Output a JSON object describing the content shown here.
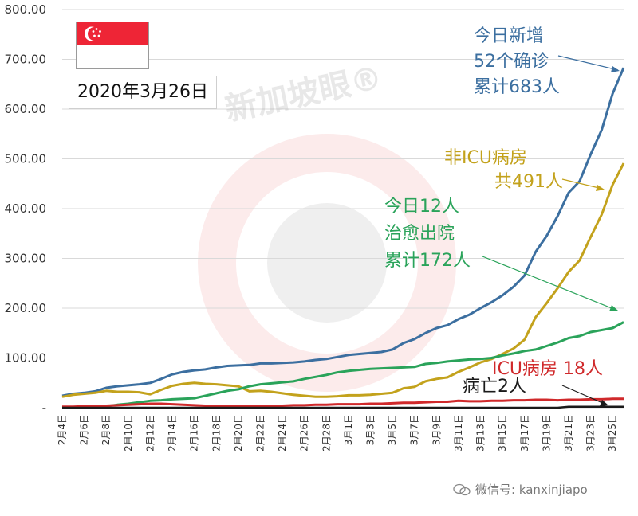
{
  "header": {
    "date": "2020年3月26日",
    "watermark": "新加坡眼®"
  },
  "annotations": {
    "confirmed": [
      "今日新增",
      "52个确诊",
      "累计683人"
    ],
    "non_icu": [
      "非ICU病房",
      "共491人"
    ],
    "discharged": [
      "今日12人",
      "治愈出院",
      "累计172人"
    ],
    "icu": "ICU病房 18人",
    "deaths": "病亡2人"
  },
  "footer": {
    "label": "微信号: kanxinjiapo"
  },
  "colors": {
    "confirmed": "#3c6fa0",
    "non_icu": "#c3a21c",
    "discharged": "#2aa35a",
    "icu": "#d0292b",
    "deaths": "#1a1a1a",
    "flag_red": "#ee2536"
  },
  "chart_data": {
    "type": "line",
    "title": "",
    "xlabel": "",
    "ylabel": "",
    "ylim": [
      0,
      800
    ],
    "yticks": [
      "-",
      "100.00",
      "200.00",
      "300.00",
      "400.00",
      "500.00",
      "600.00",
      "700.00",
      "800.00"
    ],
    "grid": true,
    "xtick_labels": [
      "2月4日",
      "2月6日",
      "2月8日",
      "2月10日",
      "2月12日",
      "2月14日",
      "2月16日",
      "2月18日",
      "2月20日",
      "2月22日",
      "2月24日",
      "2月26日",
      "2月28日",
      "3月1日",
      "3月3日",
      "3月5日",
      "3月7日",
      "3月9日",
      "3月11日",
      "3月13日",
      "3月15日",
      "3月17日",
      "3月19日",
      "3月21日",
      "3月23日",
      "3月25日"
    ],
    "x": [
      "2月4日",
      "2月5日",
      "2月6日",
      "2月7日",
      "2月8日",
      "2月9日",
      "2月10日",
      "2月11日",
      "2月12日",
      "2月13日",
      "2月14日",
      "2月15日",
      "2月16日",
      "2月17日",
      "2月18日",
      "2月19日",
      "2月20日",
      "2月21日",
      "2月22日",
      "2月23日",
      "2月24日",
      "2月25日",
      "2月26日",
      "2月27日",
      "2月28日",
      "2月29日",
      "3月1日",
      "3月2日",
      "3月3日",
      "3月4日",
      "3月5日",
      "3月6日",
      "3月7日",
      "3月8日",
      "3月9日",
      "3月10日",
      "3月11日",
      "3月12日",
      "3月13日",
      "3月14日",
      "3月15日",
      "3月16日",
      "3月17日",
      "3月18日",
      "3月19日",
      "3月20日",
      "3月21日",
      "3月22日",
      "3月23日",
      "3月24日",
      "3月25日",
      "3月26日"
    ],
    "series": [
      {
        "key": "confirmed",
        "values": [
          24,
          28,
          30,
          33,
          40,
          43,
          45,
          47,
          50,
          58,
          67,
          72,
          75,
          77,
          81,
          84,
          85,
          86,
          89,
          89,
          90,
          91,
          93,
          96,
          98,
          102,
          106,
          108,
          110,
          112,
          117,
          130,
          138,
          150,
          160,
          166,
          178,
          187,
          200,
          212,
          226,
          243,
          266,
          313,
          345,
          385,
          432,
          455,
          509,
          558,
          631,
          683
        ]
      },
      {
        "key": "non_icu",
        "values": [
          22,
          26,
          28,
          30,
          34,
          32,
          32,
          31,
          27,
          36,
          44,
          48,
          50,
          48,
          47,
          45,
          43,
          33,
          34,
          32,
          29,
          26,
          24,
          22,
          22,
          23,
          25,
          25,
          26,
          28,
          30,
          39,
          42,
          53,
          58,
          61,
          72,
          81,
          91,
          98,
          108,
          119,
          137,
          182,
          210,
          240,
          273,
          296,
          343,
          388,
          448,
          491
        ]
      },
      {
        "key": "discharged",
        "values": [
          0,
          1,
          1,
          2,
          3,
          6,
          8,
          11,
          14,
          15,
          17,
          18,
          19,
          24,
          29,
          34,
          37,
          43,
          47,
          49,
          51,
          53,
          58,
          62,
          66,
          71,
          74,
          76,
          78,
          79,
          80,
          81,
          82,
          88,
          90,
          93,
          95,
          97,
          98,
          100,
          105,
          109,
          114,
          117,
          124,
          131,
          140,
          144,
          152,
          156,
          160,
          172
        ]
      },
      {
        "key": "icu",
        "values": [
          2,
          2,
          3,
          4,
          4,
          5,
          6,
          7,
          8,
          8,
          7,
          6,
          5,
          4,
          4,
          3,
          3,
          4,
          4,
          4,
          4,
          5,
          5,
          6,
          6,
          7,
          7,
          7,
          8,
          8,
          9,
          10,
          10,
          11,
          12,
          12,
          14,
          13,
          13,
          14,
          14,
          15,
          15,
          16,
          16,
          15,
          16,
          16,
          17,
          17,
          18,
          18
        ]
      },
      {
        "key": "deaths",
        "values": [
          0,
          0,
          0,
          0,
          0,
          0,
          0,
          0,
          0,
          0,
          0,
          0,
          0,
          0,
          0,
          0,
          0,
          0,
          0,
          0,
          0,
          0,
          0,
          0,
          0,
          0,
          0,
          0,
          0,
          0,
          0,
          0,
          0,
          0,
          0,
          0,
          0,
          0,
          0,
          0,
          0,
          0,
          0,
          0,
          0,
          0,
          2,
          2,
          2,
          2,
          2,
          2
        ]
      }
    ]
  }
}
